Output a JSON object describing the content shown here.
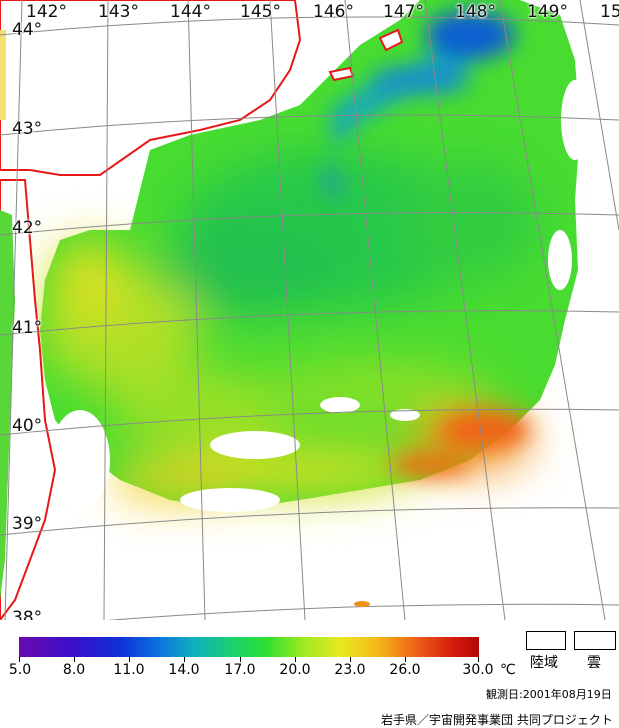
{
  "map": {
    "longitude_labels": [
      "142°",
      "143°",
      "144°",
      "145°",
      "146°",
      "147°",
      "148°",
      "149°",
      "15"
    ],
    "latitude_labels": [
      "44°",
      "43°",
      "42°",
      "41°",
      "40°",
      "39°",
      "38°"
    ],
    "land_label": "陸域",
    "cloud_label": "雲",
    "colors": {
      "coastline": "#e81818",
      "land_fill": "#f2e070",
      "graticule": "#8a8a8a",
      "cloud_and_land_mask": "#ffffff"
    }
  },
  "colorbar": {
    "tick_labels": [
      "5.0",
      "8.0",
      "11.0",
      "14.0",
      "17.0",
      "20.0",
      "23.0",
      "26.0",
      "30.0"
    ],
    "unit": "℃",
    "min": 5.0,
    "max": 30.0
  },
  "observation_date": "観測日:2001年08月19日",
  "credit": "岩手県／宇宙開発事業団 共同プロジェクト"
}
